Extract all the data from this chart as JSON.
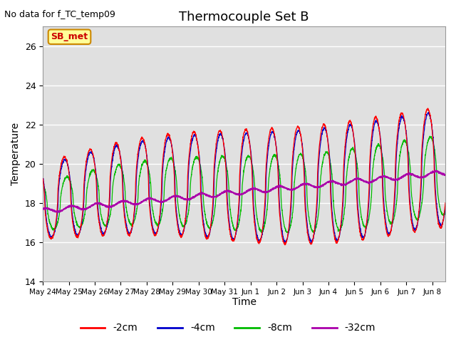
{
  "title": "Thermocouple Set B",
  "no_data_label": "No data for f_TC_temp09",
  "sb_met_label": "SB_met",
  "ylabel": "Temperature",
  "xlabel": "Time",
  "ylim": [
    14,
    27
  ],
  "yticks": [
    14,
    16,
    18,
    20,
    22,
    24,
    26
  ],
  "bg_color": "#e0e0e0",
  "fig_color": "#ffffff",
  "legend": [
    {
      "label": "-2cm",
      "color": "#ff0000"
    },
    {
      "label": "-4cm",
      "color": "#0000cc"
    },
    {
      "label": "-8cm",
      "color": "#00bb00"
    },
    {
      "label": "-32cm",
      "color": "#aa00aa"
    }
  ],
  "tick_labels": [
    "May 24",
    "May 25",
    "May 26",
    "May 27",
    "May 28",
    "May 29",
    "May 30",
    "May 31",
    "Jun 1",
    "Jun 2",
    "Jun 3",
    "Jun 4",
    "Jun 5",
    "Jun 6",
    "Jun 7",
    "Jun 8"
  ]
}
